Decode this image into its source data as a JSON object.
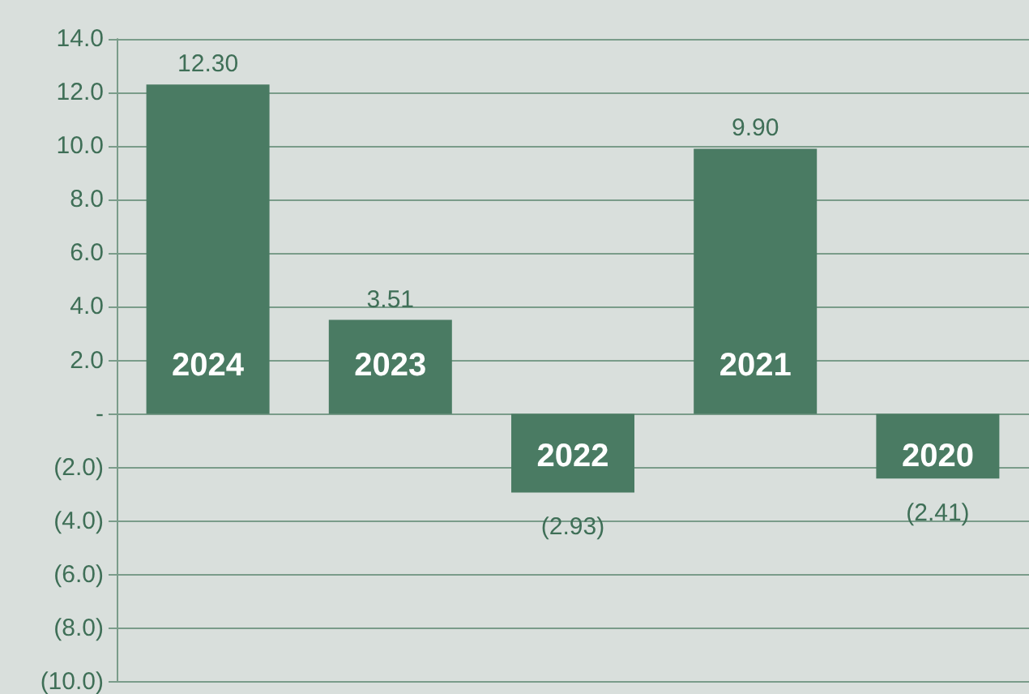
{
  "chart_data": {
    "type": "bar",
    "categories": [
      "2024",
      "2023",
      "2022",
      "2021",
      "2020"
    ],
    "values": [
      12.3,
      3.51,
      -2.93,
      9.9,
      -2.41
    ],
    "value_labels": [
      "12.30",
      "3.51",
      "(2.93)",
      "9.90",
      "(2.41)"
    ],
    "color": "#4a7b63",
    "ylim": [
      -10,
      14
    ],
    "yticks": [
      {
        "value": -10,
        "label": "(10.0)"
      },
      {
        "value": -8,
        "label": "(8.0)"
      },
      {
        "value": -6,
        "label": "(6.0)"
      },
      {
        "value": -4,
        "label": "(4.0)"
      },
      {
        "value": -2,
        "label": "(2.0)"
      },
      {
        "value": 0,
        "label": "-"
      },
      {
        "value": 2,
        "label": "2.0"
      },
      {
        "value": 4,
        "label": "4.0"
      },
      {
        "value": 6,
        "label": "6.0"
      },
      {
        "value": 8,
        "label": "8.0"
      },
      {
        "value": 10,
        "label": "10.0"
      },
      {
        "value": 12,
        "label": "12.0"
      },
      {
        "value": 14,
        "label": "14.0"
      }
    ],
    "grid": "y"
  }
}
